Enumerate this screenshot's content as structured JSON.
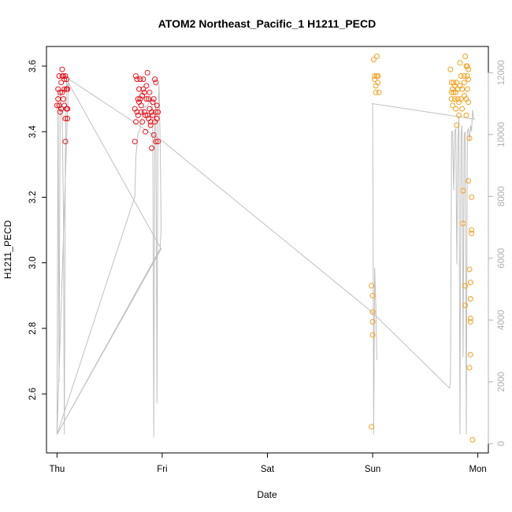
{
  "chart_data": {
    "type": "scatter",
    "title": "ATOM2 Northeast_Pacific_1 H1211_PECD",
    "xlabel": "Date",
    "ylabel": "H1211_PECD",
    "x_ticks": [
      "Thu",
      "Fri",
      "Sat",
      "Sun",
      "Mon"
    ],
    "x_unit": "days (Thu = 0)",
    "xlim": [
      -0.1,
      4.1
    ],
    "ylim": [
      2.42,
      3.66
    ],
    "y_ticks": [
      2.6,
      2.8,
      3.0,
      3.2,
      3.4,
      3.6
    ],
    "y2_ticks": [
      0,
      2000,
      4000,
      6000,
      8000,
      10000,
      12000
    ],
    "y2lim": [
      -300,
      12850
    ],
    "colors": {
      "series_red": "#e8141c",
      "series_orange": "#f5a01c",
      "altitude_line": "#c0c0c0",
      "axis": "#000000",
      "right_axis": "#b0b0b0"
    },
    "series": [
      {
        "color": "red",
        "points": [
          [
            0.0,
            3.48
          ],
          [
            0.01,
            3.53
          ],
          [
            0.01,
            3.5
          ],
          [
            0.02,
            3.57
          ],
          [
            0.02,
            3.48
          ],
          [
            0.03,
            3.52
          ],
          [
            0.03,
            3.46
          ],
          [
            0.04,
            3.55
          ],
          [
            0.04,
            3.47
          ],
          [
            0.05,
            3.57
          ],
          [
            0.05,
            3.59
          ],
          [
            0.05,
            3.52
          ],
          [
            0.06,
            3.5
          ],
          [
            0.06,
            3.57
          ],
          [
            0.07,
            3.53
          ],
          [
            0.07,
            3.56
          ],
          [
            0.07,
            3.48
          ],
          [
            0.08,
            3.57
          ],
          [
            0.08,
            3.44
          ],
          [
            0.08,
            3.37
          ],
          [
            0.09,
            3.53
          ],
          [
            0.09,
            3.56
          ],
          [
            0.09,
            3.47
          ],
          [
            0.1,
            3.53
          ],
          [
            0.1,
            3.44
          ],
          [
            0.1,
            3.47
          ],
          [
            0.74,
            3.37
          ],
          [
            0.74,
            3.47
          ],
          [
            0.75,
            3.57
          ],
          [
            0.75,
            3.43
          ],
          [
            0.76,
            3.46
          ],
          [
            0.76,
            3.56
          ],
          [
            0.77,
            3.5
          ],
          [
            0.77,
            3.45
          ],
          [
            0.78,
            3.49
          ],
          [
            0.78,
            3.53
          ],
          [
            0.79,
            3.5
          ],
          [
            0.79,
            3.56
          ],
          [
            0.8,
            3.48
          ],
          [
            0.8,
            3.46
          ],
          [
            0.81,
            3.51
          ],
          [
            0.81,
            3.43
          ],
          [
            0.82,
            3.53
          ],
          [
            0.82,
            3.56
          ],
          [
            0.83,
            3.52
          ],
          [
            0.83,
            3.46
          ],
          [
            0.84,
            3.45
          ],
          [
            0.84,
            3.4
          ],
          [
            0.85,
            3.5
          ],
          [
            0.85,
            3.54
          ],
          [
            0.86,
            3.58
          ],
          [
            0.86,
            3.45
          ],
          [
            0.87,
            3.5
          ],
          [
            0.87,
            3.44
          ],
          [
            0.88,
            3.52
          ],
          [
            0.88,
            3.47
          ],
          [
            0.89,
            3.42
          ],
          [
            0.89,
            3.43
          ],
          [
            0.9,
            3.46
          ],
          [
            0.9,
            3.35
          ],
          [
            0.91,
            3.49
          ],
          [
            0.91,
            3.45
          ],
          [
            0.92,
            3.39
          ],
          [
            0.92,
            3.5
          ],
          [
            0.93,
            3.43
          ],
          [
            0.93,
            3.56
          ],
          [
            0.94,
            3.55
          ],
          [
            0.94,
            3.46
          ],
          [
            0.94,
            3.37
          ],
          [
            0.95,
            3.44
          ],
          [
            0.95,
            3.48
          ],
          [
            0.96,
            3.46
          ],
          [
            0.96,
            3.37
          ]
        ]
      },
      {
        "color": "orange",
        "points": [
          [
            2.99,
            2.5
          ],
          [
            2.99,
            2.93
          ],
          [
            3.0,
            2.9
          ],
          [
            3.0,
            2.85
          ],
          [
            3.0,
            2.82
          ],
          [
            3.0,
            2.78
          ],
          [
            3.01,
            3.62
          ],
          [
            3.02,
            3.56
          ],
          [
            3.02,
            3.57
          ],
          [
            3.03,
            3.54
          ],
          [
            3.03,
            3.52
          ],
          [
            3.04,
            3.63
          ],
          [
            3.04,
            3.57
          ],
          [
            3.05,
            3.55
          ],
          [
            3.05,
            3.57
          ],
          [
            3.06,
            3.52
          ],
          [
            3.74,
            3.59
          ],
          [
            3.75,
            3.52
          ],
          [
            3.75,
            3.55
          ],
          [
            3.75,
            3.5
          ],
          [
            3.76,
            3.53
          ],
          [
            3.76,
            3.48
          ],
          [
            3.77,
            3.52
          ],
          [
            3.77,
            3.55
          ],
          [
            3.78,
            3.5
          ],
          [
            3.78,
            3.54
          ],
          [
            3.79,
            3.52
          ],
          [
            3.79,
            3.47
          ],
          [
            3.8,
            3.42
          ],
          [
            3.8,
            3.55
          ],
          [
            3.81,
            3.5
          ],
          [
            3.81,
            3.53
          ],
          [
            3.82,
            3.49
          ],
          [
            3.82,
            3.45
          ],
          [
            3.83,
            3.61
          ],
          [
            3.83,
            3.54
          ],
          [
            3.84,
            3.57
          ],
          [
            3.84,
            3.5
          ],
          [
            3.85,
            3.47
          ],
          [
            3.85,
            3.53
          ],
          [
            3.86,
            3.22
          ],
          [
            3.86,
            3.12
          ],
          [
            3.87,
            3.57
          ],
          [
            3.87,
            3.55
          ],
          [
            3.87,
            3.51
          ],
          [
            3.88,
            3.63
          ],
          [
            3.88,
            2.93
          ],
          [
            3.88,
            2.87
          ],
          [
            3.89,
            3.5
          ],
          [
            3.89,
            3.6
          ],
          [
            3.89,
            3.45
          ],
          [
            3.9,
            3.53
          ],
          [
            3.9,
            3.6
          ],
          [
            3.9,
            3.57
          ],
          [
            3.91,
            3.56
          ],
          [
            3.91,
            3.49
          ],
          [
            3.91,
            3.59
          ],
          [
            3.91,
            3.25
          ],
          [
            3.92,
            3.38
          ],
          [
            3.92,
            2.98
          ],
          [
            3.92,
            2.68
          ],
          [
            3.93,
            2.94
          ],
          [
            3.93,
            2.89
          ],
          [
            3.93,
            2.83
          ],
          [
            3.93,
            2.82
          ],
          [
            3.93,
            2.72
          ],
          [
            3.94,
            3.2
          ],
          [
            3.94,
            3.1
          ],
          [
            3.94,
            3.09
          ],
          [
            3.95,
            2.46
          ]
        ]
      }
    ],
    "altitude_line": [
      [
        0.0,
        300
      ],
      [
        0.01,
        11500
      ],
      [
        0.02,
        2000
      ],
      [
        0.03,
        11400
      ],
      [
        0.05,
        10500
      ],
      [
        0.06,
        7800
      ],
      [
        0.07,
        300
      ],
      [
        0.08,
        9400
      ],
      [
        0.09,
        11800
      ],
      [
        0.1,
        11500
      ],
      [
        0.11,
        11700
      ],
      [
        0.12,
        11600
      ],
      [
        0.99,
        6300
      ],
      [
        0.0,
        300
      ],
      [
        0.0,
        300
      ],
      [
        0.74,
        8000
      ],
      [
        0.75,
        9300
      ],
      [
        0.77,
        10000
      ],
      [
        0.79,
        10200
      ],
      [
        0.81,
        10600
      ],
      [
        0.83,
        10900
      ],
      [
        0.85,
        10900
      ],
      [
        0.87,
        11000
      ],
      [
        0.88,
        11100
      ],
      [
        0.89,
        11200
      ],
      [
        0.91,
        10800
      ],
      [
        0.92,
        200
      ],
      [
        0.93,
        10600
      ],
      [
        0.94,
        11000
      ],
      [
        0.95,
        1300
      ],
      [
        0.96,
        10800
      ],
      [
        0.97,
        11600
      ],
      [
        0.98,
        9800
      ],
      [
        0.99,
        7000
      ],
      [
        0.98,
        6300
      ],
      [
        0.0,
        300
      ],
      [
        0.0,
        300
      ],
      [
        0.11,
        11800
      ],
      [
        1.0,
        9800
      ],
      [
        2.98,
        4300
      ],
      [
        3.73,
        1800
      ],
      [
        3.74,
        2000
      ],
      [
        3.75,
        10100
      ],
      [
        3.76,
        10100
      ],
      [
        3.77,
        8200
      ],
      [
        3.78,
        10100
      ],
      [
        3.79,
        10200
      ],
      [
        3.8,
        5800
      ],
      [
        3.81,
        9800
      ],
      [
        3.82,
        10600
      ],
      [
        3.83,
        300
      ],
      [
        3.84,
        10000
      ],
      [
        3.85,
        10300
      ],
      [
        3.86,
        2800
      ],
      [
        3.87,
        10000
      ],
      [
        3.88,
        10100
      ],
      [
        3.89,
        300
      ],
      [
        3.9,
        10100
      ],
      [
        3.91,
        10200
      ],
      [
        3.92,
        9800
      ],
      [
        3.93,
        10300
      ],
      [
        3.94,
        10100
      ],
      [
        3.95,
        10800
      ],
      [
        3.96,
        10500
      ],
      [
        3.97,
        10500
      ],
      [
        3.97,
        10500
      ],
      [
        3.0,
        11000
      ],
      [
        2.99,
        11000
      ],
      [
        3.0,
        11000
      ],
      [
        3.01,
        300
      ],
      [
        3.02,
        5700
      ],
      [
        3.03,
        4500
      ],
      [
        3.04,
        2700
      ]
    ]
  }
}
